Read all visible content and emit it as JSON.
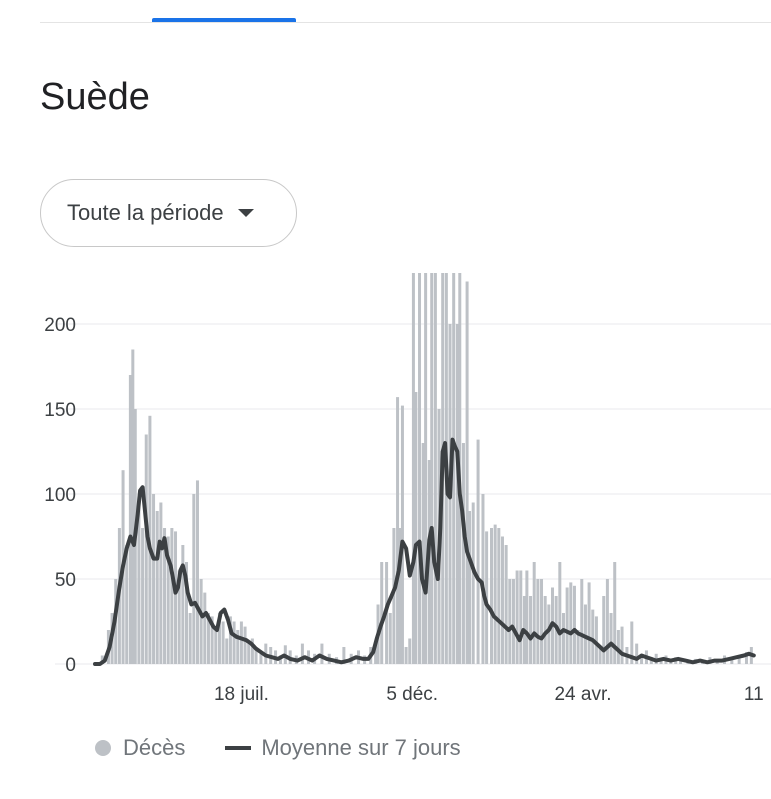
{
  "page": {
    "title": "Suède"
  },
  "period_selector": {
    "label": "Toute la période"
  },
  "legend": {
    "deaths": "Décès",
    "average": "Moyenne sur 7 jours"
  },
  "colors": {
    "bars": "#bdc1c6",
    "line": "#3c4043",
    "grid": "#e8eaed",
    "tab_accent": "#1a73e8"
  },
  "chart_data": {
    "type": "bar",
    "ylim": [
      0,
      230
    ],
    "yticks": [
      0,
      50,
      100,
      150,
      200
    ],
    "xticks": [
      {
        "label": "18 juil.",
        "day": 120
      },
      {
        "label": "5 déc.",
        "day": 260
      },
      {
        "label": "24 avr.",
        "day": 400
      },
      {
        "label": "11",
        "day": 540
      }
    ],
    "series": [
      {
        "name": "Décès",
        "kind": "bar",
        "points": [
          [
            0,
            0
          ],
          [
            6,
            5
          ],
          [
            11,
            20
          ],
          [
            14,
            30
          ],
          [
            17,
            50
          ],
          [
            20,
            80
          ],
          [
            23,
            114
          ],
          [
            26,
            70
          ],
          [
            29,
            170
          ],
          [
            31,
            185
          ],
          [
            33,
            150
          ],
          [
            36,
            98
          ],
          [
            39,
            80
          ],
          [
            42,
            135
          ],
          [
            45,
            146
          ],
          [
            48,
            100
          ],
          [
            51,
            90
          ],
          [
            54,
            95
          ],
          [
            57,
            80
          ],
          [
            60,
            75
          ],
          [
            63,
            80
          ],
          [
            66,
            78
          ],
          [
            69,
            55
          ],
          [
            72,
            70
          ],
          [
            75,
            60
          ],
          [
            78,
            30
          ],
          [
            81,
            100
          ],
          [
            84,
            108
          ],
          [
            87,
            50
          ],
          [
            90,
            42
          ],
          [
            93,
            30
          ],
          [
            96,
            28
          ],
          [
            99,
            22
          ],
          [
            102,
            30
          ],
          [
            105,
            25
          ],
          [
            108,
            15
          ],
          [
            111,
            28
          ],
          [
            114,
            25
          ],
          [
            117,
            20
          ],
          [
            120,
            25
          ],
          [
            123,
            22
          ],
          [
            126,
            12
          ],
          [
            129,
            15
          ],
          [
            132,
            10
          ],
          [
            136,
            6
          ],
          [
            140,
            12
          ],
          [
            144,
            10
          ],
          [
            148,
            8
          ],
          [
            152,
            5
          ],
          [
            156,
            11
          ],
          [
            160,
            8
          ],
          [
            165,
            5
          ],
          [
            170,
            12
          ],
          [
            175,
            8
          ],
          [
            180,
            6
          ],
          [
            186,
            12
          ],
          [
            192,
            6
          ],
          [
            198,
            4
          ],
          [
            204,
            10
          ],
          [
            210,
            6
          ],
          [
            216,
            8
          ],
          [
            221,
            5
          ],
          [
            226,
            10
          ],
          [
            230,
            12
          ],
          [
            232,
            35
          ],
          [
            235,
            60
          ],
          [
            239,
            60
          ],
          [
            242,
            30
          ],
          [
            245,
            80
          ],
          [
            248,
            157
          ],
          [
            250,
            80
          ],
          [
            252,
            152
          ],
          [
            255,
            10
          ],
          [
            258,
            15
          ],
          [
            261,
            230
          ],
          [
            263,
            160
          ],
          [
            266,
            230
          ],
          [
            269,
            130
          ],
          [
            271,
            230
          ],
          [
            274,
            120
          ],
          [
            276,
            230
          ],
          [
            279,
            230
          ],
          [
            282,
            150
          ],
          [
            285,
            230
          ],
          [
            288,
            230
          ],
          [
            291,
            200
          ],
          [
            294,
            230
          ],
          [
            297,
            200
          ],
          [
            299,
            230
          ],
          [
            302,
            130
          ],
          [
            305,
            225
          ],
          [
            307,
            90
          ],
          [
            310,
            95
          ],
          [
            314,
            132
          ],
          [
            318,
            100
          ],
          [
            321,
            78
          ],
          [
            325,
            80
          ],
          [
            328,
            82
          ],
          [
            331,
            80
          ],
          [
            334,
            75
          ],
          [
            337,
            70
          ],
          [
            340,
            50
          ],
          [
            343,
            50
          ],
          [
            346,
            55
          ],
          [
            349,
            55
          ],
          [
            352,
            40
          ],
          [
            354,
            55
          ],
          [
            357,
            40
          ],
          [
            360,
            60
          ],
          [
            363,
            50
          ],
          [
            366,
            50
          ],
          [
            369,
            40
          ],
          [
            372,
            35
          ],
          [
            375,
            45
          ],
          [
            378,
            40
          ],
          [
            381,
            60
          ],
          [
            384,
            30
          ],
          [
            387,
            45
          ],
          [
            390,
            48
          ],
          [
            393,
            46
          ],
          [
            396,
            20
          ],
          [
            399,
            50
          ],
          [
            402,
            35
          ],
          [
            405,
            48
          ],
          [
            408,
            32
          ],
          [
            411,
            28
          ],
          [
            414,
            10
          ],
          [
            417,
            40
          ],
          [
            420,
            50
          ],
          [
            423,
            30
          ],
          [
            426,
            60
          ],
          [
            429,
            20
          ],
          [
            432,
            22
          ],
          [
            436,
            10
          ],
          [
            440,
            25
          ],
          [
            444,
            12
          ],
          [
            448,
            5
          ],
          [
            452,
            8
          ],
          [
            456,
            4
          ],
          [
            460,
            6
          ],
          [
            464,
            3
          ],
          [
            468,
            5
          ],
          [
            472,
            2
          ],
          [
            476,
            4
          ],
          [
            480,
            3
          ],
          [
            486,
            2
          ],
          [
            492,
            3
          ],
          [
            498,
            2
          ],
          [
            504,
            4
          ],
          [
            510,
            3
          ],
          [
            516,
            5
          ],
          [
            522,
            4
          ],
          [
            528,
            5
          ],
          [
            534,
            7
          ],
          [
            538,
            10
          ]
        ]
      },
      {
        "name": "Moyenne sur 7 jours",
        "kind": "line",
        "points": [
          [
            0,
            0
          ],
          [
            4,
            0
          ],
          [
            8,
            2
          ],
          [
            12,
            10
          ],
          [
            16,
            25
          ],
          [
            20,
            45
          ],
          [
            23,
            58
          ],
          [
            26,
            68
          ],
          [
            29,
            75
          ],
          [
            32,
            70
          ],
          [
            35,
            88
          ],
          [
            37,
            102
          ],
          [
            39,
            104
          ],
          [
            41,
            90
          ],
          [
            43,
            75
          ],
          [
            45,
            68
          ],
          [
            48,
            62
          ],
          [
            51,
            62
          ],
          [
            53,
            72
          ],
          [
            55,
            68
          ],
          [
            57,
            74
          ],
          [
            59,
            64
          ],
          [
            62,
            58
          ],
          [
            64,
            50
          ],
          [
            66,
            42
          ],
          [
            68,
            45
          ],
          [
            70,
            55
          ],
          [
            72,
            58
          ],
          [
            74,
            52
          ],
          [
            76,
            42
          ],
          [
            79,
            35
          ],
          [
            82,
            36
          ],
          [
            85,
            32
          ],
          [
            88,
            28
          ],
          [
            91,
            30
          ],
          [
            94,
            26
          ],
          [
            97,
            22
          ],
          [
            100,
            20
          ],
          [
            103,
            30
          ],
          [
            106,
            32
          ],
          [
            109,
            26
          ],
          [
            112,
            18
          ],
          [
            116,
            16
          ],
          [
            120,
            15
          ],
          [
            124,
            14
          ],
          [
            128,
            12
          ],
          [
            132,
            9
          ],
          [
            136,
            7
          ],
          [
            140,
            5
          ],
          [
            145,
            4
          ],
          [
            150,
            3
          ],
          [
            155,
            5
          ],
          [
            160,
            3
          ],
          [
            166,
            2
          ],
          [
            172,
            4
          ],
          [
            178,
            2
          ],
          [
            184,
            5
          ],
          [
            190,
            3
          ],
          [
            196,
            2
          ],
          [
            202,
            1
          ],
          [
            208,
            2
          ],
          [
            214,
            4
          ],
          [
            220,
            3
          ],
          [
            224,
            3
          ],
          [
            228,
            7
          ],
          [
            231,
            15
          ],
          [
            234,
            22
          ],
          [
            237,
            28
          ],
          [
            240,
            35
          ],
          [
            243,
            40
          ],
          [
            246,
            45
          ],
          [
            249,
            55
          ],
          [
            252,
            72
          ],
          [
            255,
            68
          ],
          [
            258,
            52
          ],
          [
            261,
            60
          ],
          [
            263,
            70
          ],
          [
            266,
            72
          ],
          [
            268,
            50
          ],
          [
            271,
            42
          ],
          [
            274,
            73
          ],
          [
            276,
            80
          ],
          [
            278,
            60
          ],
          [
            281,
            50
          ],
          [
            283,
            80
          ],
          [
            285,
            125
          ],
          [
            287,
            130
          ],
          [
            289,
            100
          ],
          [
            291,
            98
          ],
          [
            293,
            132
          ],
          [
            295,
            128
          ],
          [
            297,
            125
          ],
          [
            299,
            100
          ],
          [
            301,
            90
          ],
          [
            303,
            75
          ],
          [
            305,
            66
          ],
          [
            308,
            60
          ],
          [
            311,
            54
          ],
          [
            314,
            50
          ],
          [
            317,
            48
          ],
          [
            319,
            40
          ],
          [
            321,
            35
          ],
          [
            324,
            32
          ],
          [
            327,
            28
          ],
          [
            330,
            26
          ],
          [
            333,
            24
          ],
          [
            336,
            22
          ],
          [
            339,
            20
          ],
          [
            342,
            22
          ],
          [
            345,
            18
          ],
          [
            348,
            14
          ],
          [
            351,
            20
          ],
          [
            354,
            18
          ],
          [
            357,
            15
          ],
          [
            360,
            18
          ],
          [
            363,
            16
          ],
          [
            366,
            15
          ],
          [
            369,
            18
          ],
          [
            372,
            20
          ],
          [
            375,
            24
          ],
          [
            378,
            22
          ],
          [
            381,
            18
          ],
          [
            384,
            20
          ],
          [
            387,
            19
          ],
          [
            390,
            18
          ],
          [
            393,
            20
          ],
          [
            396,
            18
          ],
          [
            399,
            17
          ],
          [
            402,
            16
          ],
          [
            405,
            15
          ],
          [
            408,
            14
          ],
          [
            411,
            12
          ],
          [
            414,
            10
          ],
          [
            417,
            8
          ],
          [
            420,
            10
          ],
          [
            423,
            12
          ],
          [
            426,
            10
          ],
          [
            429,
            8
          ],
          [
            432,
            6
          ],
          [
            436,
            5
          ],
          [
            440,
            4
          ],
          [
            444,
            3
          ],
          [
            448,
            5
          ],
          [
            452,
            4
          ],
          [
            456,
            3
          ],
          [
            460,
            2
          ],
          [
            466,
            3
          ],
          [
            472,
            2
          ],
          [
            478,
            3
          ],
          [
            484,
            2
          ],
          [
            490,
            1
          ],
          [
            496,
            2
          ],
          [
            502,
            1
          ],
          [
            508,
            2
          ],
          [
            514,
            2
          ],
          [
            520,
            3
          ],
          [
            526,
            4
          ],
          [
            532,
            5
          ],
          [
            536,
            6
          ],
          [
            540,
            5
          ]
        ]
      }
    ]
  }
}
